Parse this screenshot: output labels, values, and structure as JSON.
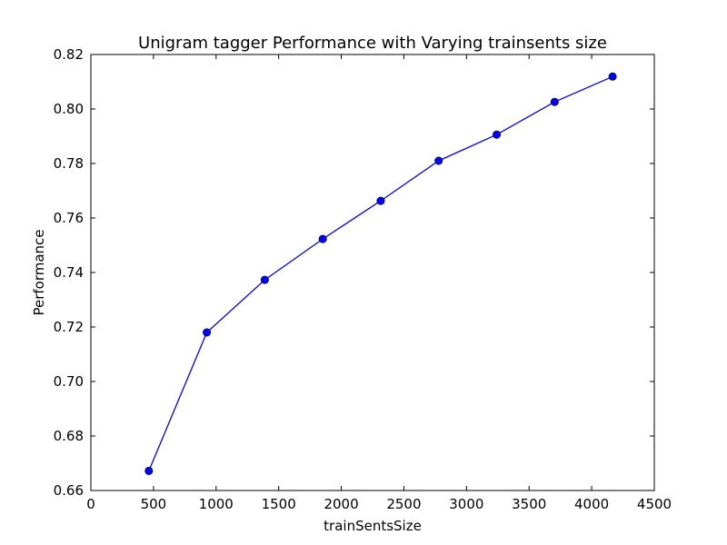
{
  "chart_data": {
    "type": "line",
    "title": "Unigram tagger Performance with Varying trainsents size",
    "xlabel": "trainSentsSize",
    "ylabel": "Performance",
    "xlim": [
      0,
      4500
    ],
    "ylim": [
      0.66,
      0.82
    ],
    "xticks": [
      "0",
      "500",
      "1000",
      "1500",
      "2000",
      "2500",
      "3000",
      "3500",
      "4000",
      "4500"
    ],
    "xtick_values": [
      0,
      500,
      1000,
      1500,
      2000,
      2500,
      3000,
      3500,
      4000,
      4500
    ],
    "yticks": [
      "0.66",
      "0.68",
      "0.70",
      "0.72",
      "0.74",
      "0.76",
      "0.78",
      "0.80",
      "0.82"
    ],
    "ytick_values": [
      0.66,
      0.68,
      0.7,
      0.72,
      0.74,
      0.76,
      0.78,
      0.8,
      0.82
    ],
    "grid": false,
    "series": [
      {
        "color": "#0000ff",
        "marker": "circle",
        "x": [
          463,
          926,
          1389,
          1852,
          2315,
          2778,
          3241,
          3704,
          4167
        ],
        "y": [
          0.6672,
          0.718,
          0.7373,
          0.7523,
          0.7663,
          0.781,
          0.7906,
          0.8026,
          0.8119
        ]
      }
    ]
  }
}
